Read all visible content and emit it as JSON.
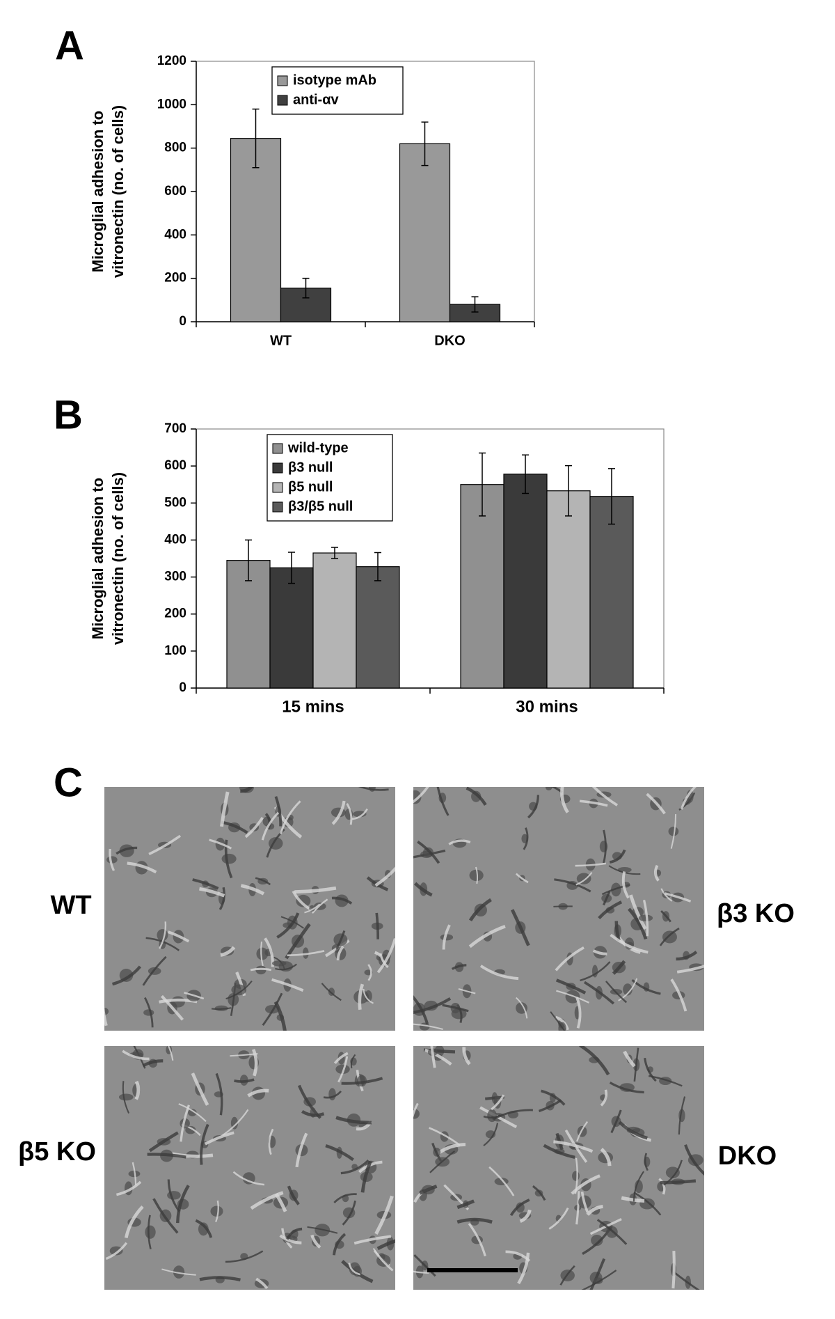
{
  "chart_data": [
    {
      "type": "bar",
      "panel": "A",
      "ylabel": [
        "Microglial adhesion to",
        "vitronectin (no. of cells)"
      ],
      "categories": [
        "WT",
        "DKO"
      ],
      "series": [
        {
          "name": "isotype mAb",
          "color": "#999999",
          "values": [
            845,
            820
          ],
          "errors": [
            135,
            100
          ]
        },
        {
          "name": "anti-αv",
          "color": "#404040",
          "values": [
            155,
            80
          ],
          "errors": [
            45,
            35
          ]
        }
      ],
      "ylim": [
        0,
        1200
      ],
      "yticks": [
        0,
        200,
        400,
        600,
        800,
        1000,
        1200
      ],
      "legend": "upper center"
    },
    {
      "type": "bar",
      "panel": "B",
      "ylabel": [
        "Microglial adhesion to",
        "vitronectin (no. of cells)"
      ],
      "categories": [
        "15 mins",
        "30 mins"
      ],
      "series": [
        {
          "name": "wild-type",
          "color": "#909090",
          "values": [
            345,
            550
          ],
          "errors": [
            55,
            85
          ]
        },
        {
          "name": "β3 null",
          "color": "#3a3a3a",
          "values": [
            325,
            578
          ],
          "errors": [
            42,
            52
          ]
        },
        {
          "name": "β5 null",
          "color": "#b4b4b4",
          "values": [
            365,
            533
          ],
          "errors": [
            15,
            68
          ]
        },
        {
          "name": "β3/β5 null",
          "color": "#5a5a5a",
          "values": [
            328,
            518
          ],
          "errors": [
            38,
            75
          ]
        }
      ],
      "ylim": [
        0,
        700
      ],
      "yticks": [
        0,
        100,
        200,
        300,
        400,
        500,
        600,
        700
      ],
      "legend": "upper left"
    }
  ],
  "panel_c": {
    "label": "C",
    "images": [
      {
        "label": "WT"
      },
      {
        "label": "β3 KO"
      },
      {
        "label": "β5 KO"
      },
      {
        "label": "DKO"
      }
    ]
  }
}
